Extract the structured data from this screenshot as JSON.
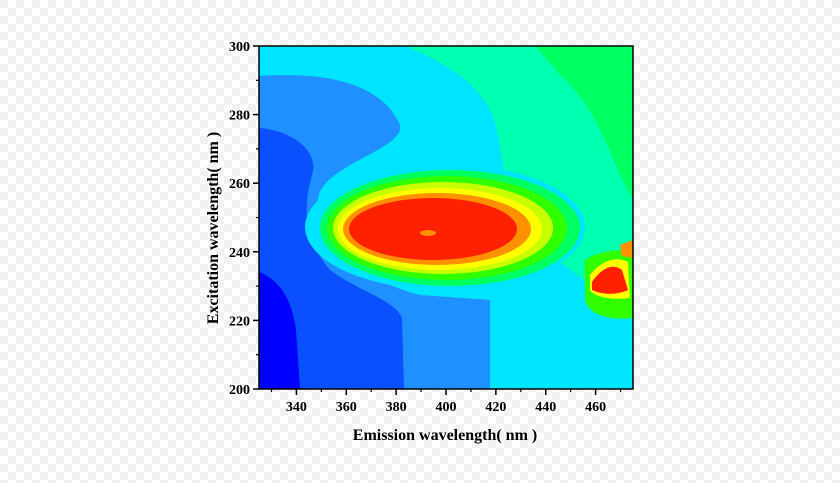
{
  "chart_data": {
    "type": "contour",
    "title": "",
    "xlabel": "Emission wavelength( nm )",
    "ylabel": "Excitation wavelength( nm )",
    "xlim": [
      325,
      475
    ],
    "ylim": [
      200,
      300
    ],
    "x_ticks": [
      "340",
      "360",
      "380",
      "400",
      "420",
      "440",
      "460"
    ],
    "y_ticks": [
      "200",
      "220",
      "240",
      "260",
      "280",
      "300"
    ],
    "x_tick_values": [
      340,
      360,
      380,
      400,
      420,
      440,
      460
    ],
    "y_tick_values": [
      200,
      220,
      240,
      260,
      280,
      300
    ],
    "colormap": [
      "#0000ff",
      "#0a50ff",
      "#1e90ff",
      "#00e5ff",
      "#00ffb0",
      "#00ff60",
      "#30ff00",
      "#c8ff00",
      "#ffff00",
      "#ff9000",
      "#ff2000"
    ],
    "peaks": [
      {
        "em": 392,
        "ex": 245,
        "level": "max"
      },
      {
        "em": 466,
        "ex": 231,
        "level": "max"
      }
    ],
    "grid": false
  }
}
